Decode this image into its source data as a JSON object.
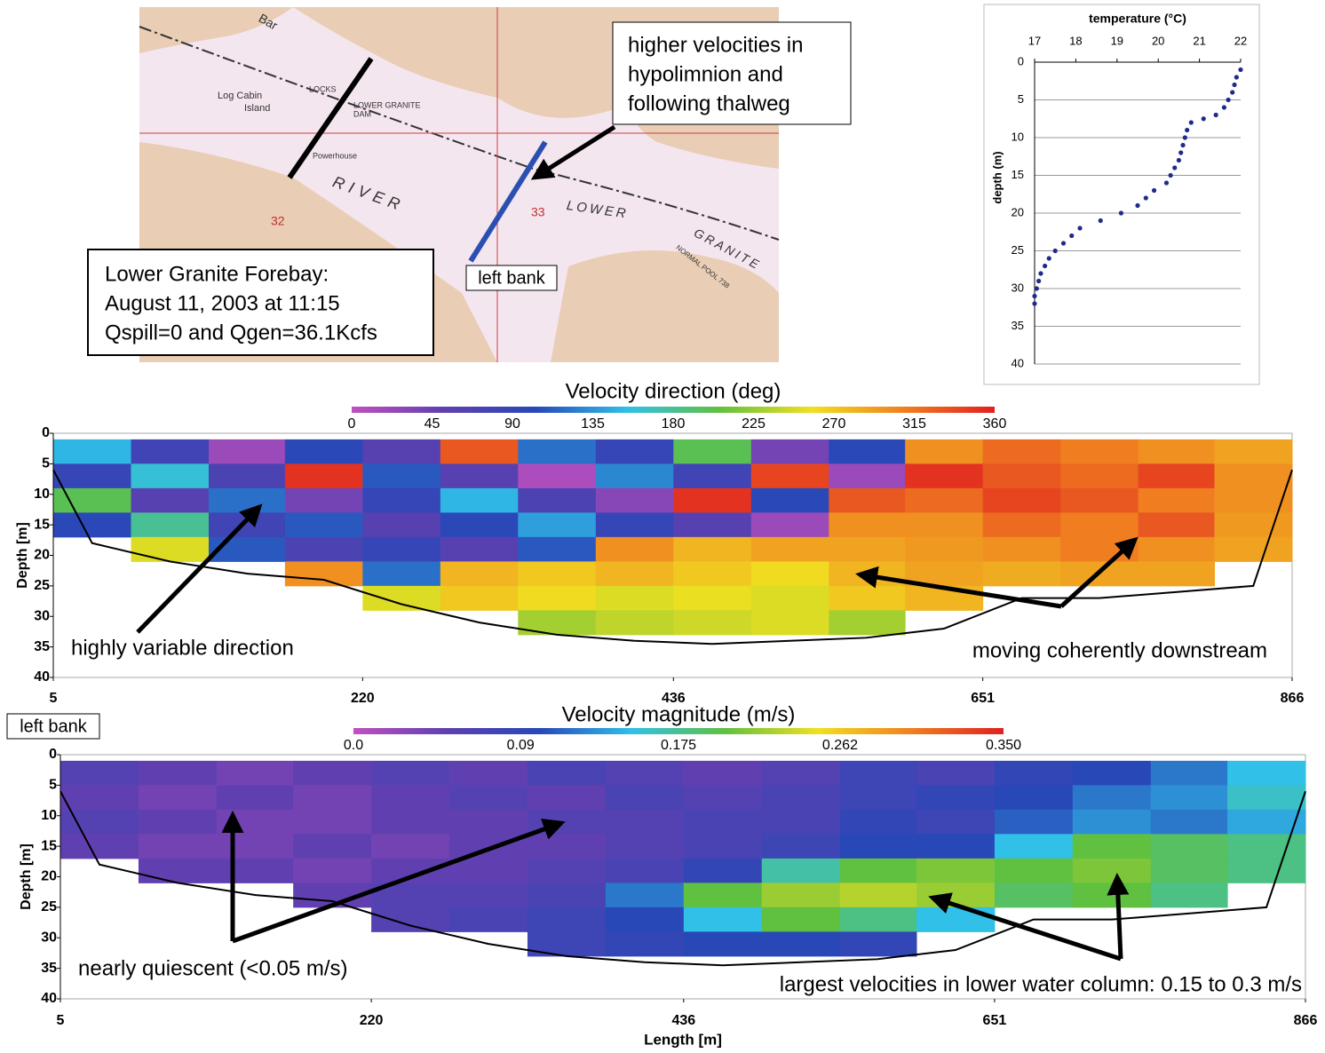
{
  "map": {
    "labels": [
      "Bar",
      "Log Cabin",
      "Island",
      "LOCKS",
      "LOWER GRANITE",
      "DAM",
      "Powerhouse",
      "RIVER",
      "33",
      "32",
      "LOWER",
      "GRANITE",
      "NORMAL POOL 738"
    ],
    "info": [
      "Lower Granite Forebay:",
      "August 11, 2003 at 11:15",
      "Qspill=0 and Qgen=36.1Kcfs"
    ],
    "note": [
      "higher velocities in",
      "hypolimnion and",
      "following thalweg"
    ],
    "left_bank": "left bank"
  },
  "left_bank_label": "left bank",
  "chart_data": [
    {
      "type": "scatter",
      "title": "temperature (°C)",
      "ylabel": "depth (m)",
      "color": "#1f2a8a",
      "grid": true,
      "y_inverted": true,
      "xlim": [
        17,
        22
      ],
      "xticks": [
        17,
        18,
        19,
        20,
        21,
        22
      ],
      "ylim": [
        0,
        40
      ],
      "yticks": [
        0,
        5,
        10,
        15,
        20,
        25,
        30,
        35,
        40
      ],
      "x": [
        22,
        21.9,
        21.85,
        21.8,
        21.7,
        21.6,
        21.4,
        21.1,
        20.8,
        20.7,
        20.65,
        20.6,
        20.55,
        20.5,
        20.4,
        20.3,
        20.2,
        19.9,
        19.7,
        19.5,
        19.1,
        18.6,
        18.1,
        17.9,
        17.7,
        17.5,
        17.35,
        17.25,
        17.15,
        17.1,
        17.05,
        17.0,
        17.0
      ],
      "y": [
        1,
        2,
        3,
        4,
        5,
        6,
        7,
        7.5,
        8,
        9,
        10,
        11,
        12,
        13,
        14,
        15,
        16,
        17,
        18,
        19,
        20,
        21,
        22,
        23,
        24,
        25,
        26,
        27,
        28,
        29,
        30,
        31,
        32
      ]
    },
    {
      "type": "heatmap",
      "title": "Velocity direction (deg)",
      "ylabel": "Depth [m]",
      "y_inverted": true,
      "xlim": [
        5,
        866
      ],
      "xticks": [
        5,
        220,
        436,
        651,
        866
      ],
      "ylim": [
        0,
        40
      ],
      "yticks": [
        0,
        5,
        10,
        15,
        20,
        25,
        30,
        35,
        40
      ],
      "clim": [
        0,
        360
      ],
      "colorbar_ticks": [
        0,
        45,
        90,
        135,
        180,
        225,
        270,
        315,
        360
      ],
      "colormap": [
        "#c050c0",
        "#6040b0",
        "#2848b8",
        "#30c0e8",
        "#60c040",
        "#f0e020",
        "#f08020",
        "#e02020"
      ],
      "x_bins": [
        5,
        59,
        113,
        166,
        220,
        274,
        328,
        382,
        436,
        490,
        544,
        597,
        651,
        705,
        759,
        812,
        866
      ],
      "y_bins": [
        1,
        5,
        9,
        13,
        17,
        21,
        25,
        29,
        33
      ],
      "z": [
        [
          150,
          80,
          20,
          100,
          60,
          330,
          120,
          90,
          200,
          40,
          100,
          300,
          320,
          310,
          300,
          290
        ],
        [
          90,
          160,
          70,
          350,
          110,
          60,
          10,
          130,
          80,
          340,
          20,
          350,
          330,
          320,
          340,
          300
        ],
        [
          200,
          60,
          120,
          40,
          90,
          150,
          70,
          30,
          350,
          100,
          330,
          320,
          340,
          330,
          310,
          300
        ],
        [
          100,
          180,
          80,
          110,
          60,
          100,
          140,
          90,
          60,
          20,
          300,
          300,
          320,
          310,
          330,
          295
        ],
        [
          null,
          250,
          110,
          70,
          90,
          60,
          110,
          300,
          280,
          290,
          290,
          295,
          300,
          310,
          300,
          290
        ],
        [
          null,
          null,
          null,
          300,
          120,
          280,
          270,
          280,
          270,
          260,
          280,
          290,
          285,
          290,
          290,
          null
        ],
        [
          null,
          null,
          null,
          null,
          250,
          270,
          260,
          250,
          255,
          250,
          270,
          280,
          null,
          null,
          null,
          null
        ],
        [
          null,
          null,
          null,
          null,
          null,
          null,
          230,
          240,
          245,
          250,
          230,
          null,
          null,
          null,
          null,
          null
        ]
      ],
      "bottom": {
        "x": [
          5,
          32,
          86,
          140,
          193,
          247,
          301,
          355,
          409,
          463,
          517,
          570,
          624,
          678,
          732,
          786,
          839,
          866
        ],
        "depth": [
          6,
          18,
          21,
          23,
          24,
          28,
          31,
          33,
          34,
          34.5,
          34,
          33.5,
          32,
          27,
          27,
          26,
          25,
          6
        ]
      },
      "annotations": [
        "highly variable direction",
        "moving coherently downstream"
      ]
    },
    {
      "type": "heatmap",
      "title": "Velocity magnitude (m/s)",
      "ylabel": "Depth [m]",
      "xlabel": "Length [m]",
      "y_inverted": true,
      "xlim": [
        5,
        866
      ],
      "xticks": [
        5,
        220,
        436,
        651,
        866
      ],
      "ylim": [
        0,
        40
      ],
      "yticks": [
        0,
        5,
        10,
        15,
        20,
        25,
        30,
        35,
        40
      ],
      "clim": [
        0,
        0.35
      ],
      "colorbar_ticks": [
        {
          "value": 0,
          "label": "0.0"
        },
        0.09,
        0.175,
        0.262,
        {
          "value": 0.35,
          "label": "0.350"
        }
      ],
      "colormap": [
        "#c050c0",
        "#6040b0",
        "#2848b8",
        "#30c0e8",
        "#60c040",
        "#f0e020",
        "#f08020",
        "#e02020"
      ],
      "x_bins": [
        5,
        59,
        113,
        166,
        220,
        274,
        328,
        382,
        436,
        490,
        544,
        597,
        651,
        705,
        759,
        812,
        866
      ],
      "y_bins": [
        1,
        5,
        9,
        13,
        17,
        21,
        25,
        29,
        33
      ],
      "z": [
        [
          0.06,
          0.05,
          0.04,
          0.05,
          0.06,
          0.05,
          0.07,
          0.06,
          0.05,
          0.06,
          0.08,
          0.07,
          0.09,
          0.1,
          0.12,
          0.15
        ],
        [
          0.05,
          0.04,
          0.05,
          0.04,
          0.05,
          0.06,
          0.05,
          0.07,
          0.06,
          0.07,
          0.08,
          0.09,
          0.1,
          0.12,
          0.13,
          0.16
        ],
        [
          0.06,
          0.05,
          0.04,
          0.04,
          0.05,
          0.05,
          0.06,
          0.06,
          0.07,
          0.07,
          0.09,
          0.08,
          0.11,
          0.13,
          0.12,
          0.14
        ],
        [
          0.05,
          0.04,
          0.04,
          0.05,
          0.04,
          0.05,
          0.05,
          0.06,
          0.07,
          0.08,
          0.1,
          0.1,
          0.15,
          0.2,
          0.19,
          0.18
        ],
        [
          null,
          0.05,
          0.05,
          0.04,
          0.05,
          0.05,
          0.06,
          0.07,
          0.09,
          0.17,
          0.2,
          0.21,
          0.2,
          0.21,
          0.19,
          0.18
        ],
        [
          null,
          null,
          null,
          0.05,
          0.06,
          0.06,
          0.07,
          0.12,
          0.2,
          0.22,
          0.23,
          0.22,
          0.19,
          0.2,
          0.18,
          null
        ],
        [
          null,
          null,
          null,
          null,
          0.06,
          0.07,
          0.08,
          0.1,
          0.15,
          0.2,
          0.18,
          0.15,
          null,
          null,
          null,
          null
        ],
        [
          null,
          null,
          null,
          null,
          null,
          null,
          0.08,
          0.09,
          0.1,
          0.1,
          0.09,
          null,
          null,
          null,
          null,
          null
        ]
      ],
      "bottom": {
        "x": [
          5,
          32,
          86,
          140,
          193,
          247,
          301,
          355,
          409,
          463,
          517,
          570,
          624,
          678,
          732,
          786,
          839,
          866
        ],
        "depth": [
          6,
          18,
          21,
          23,
          24,
          28,
          31,
          33,
          34,
          34.5,
          34,
          33.5,
          32,
          27,
          27,
          26,
          25,
          6
        ]
      },
      "annotations": [
        "nearly quiescent (<0.05 m/s)",
        "largest velocities in lower water column: 0.15 to 0.3 m/s"
      ]
    }
  ]
}
